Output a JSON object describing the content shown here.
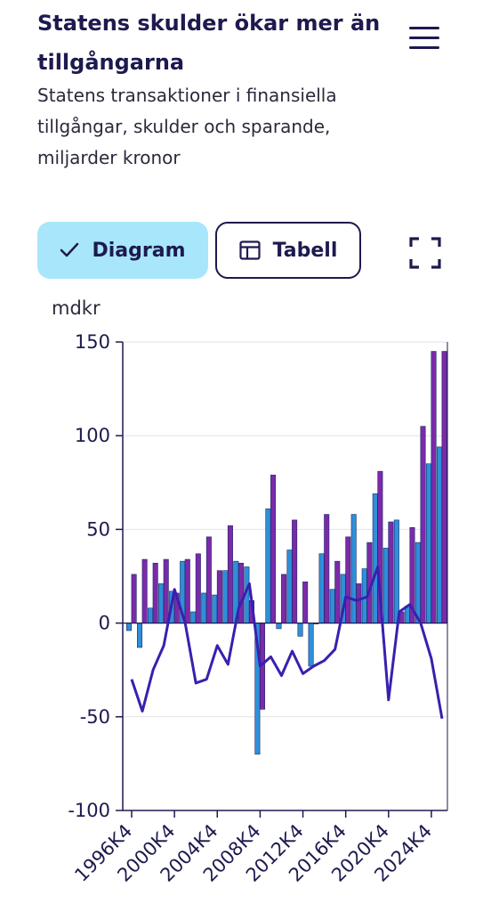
{
  "header": {
    "title": "Statens skulder ökar mer än tillgångarna",
    "subtitle": "Statens transaktioner i finansiella tillgångar, skulder och sparande, miljarder kronor"
  },
  "toolbar": {
    "diagram_label": "Diagram",
    "tabell_label": "Tabell"
  },
  "icons": [
    "menu-icon",
    "check-icon",
    "table-icon",
    "fullscreen-icon"
  ],
  "chart_data": {
    "type": "bar",
    "ylabel": "mdkr",
    "ylim": [
      -100,
      150
    ],
    "yticks": [
      150,
      100,
      50,
      0,
      -50,
      -100
    ],
    "xtick_labels": [
      "1996K4",
      "2000K4",
      "2004K4",
      "2008K4",
      "2012K4",
      "2016K4",
      "2020K4",
      "2024K4"
    ],
    "categories": [
      "1996K4",
      "1997K4",
      "1998K4",
      "1999K4",
      "2000K4",
      "2001K4",
      "2002K4",
      "2003K4",
      "2004K4",
      "2005K4",
      "2006K4",
      "2007K4",
      "2008K4",
      "2009K4",
      "2010K4",
      "2011K4",
      "2012K4",
      "2013K4",
      "2014K4",
      "2015K4",
      "2016K4",
      "2017K4",
      "2018K4",
      "2019K4",
      "2020K4",
      "2021K4",
      "2022K4",
      "2023K4",
      "2024K4",
      "2025K4"
    ],
    "series": [
      {
        "type": "bar",
        "color": "#2f8fd8",
        "values": [
          -4,
          -13,
          8,
          21,
          17,
          33,
          6,
          16,
          15,
          28,
          33,
          30,
          -70,
          61,
          -3,
          39,
          -7,
          -23,
          37,
          18,
          26,
          58,
          29,
          69,
          40,
          55,
          9,
          43,
          85,
          94
        ]
      },
      {
        "type": "bar",
        "color": "#7b2aa8",
        "values": [
          26,
          34,
          32,
          34,
          16,
          34,
          37,
          46,
          28,
          52,
          32,
          12,
          -46,
          79,
          26,
          55,
          22,
          0,
          58,
          33,
          46,
          21,
          43,
          81,
          54,
          6,
          51,
          105,
          145,
          145
        ]
      },
      {
        "type": "line",
        "color": "#3a1fb0",
        "values": [
          -30,
          -47,
          -25,
          -12,
          18,
          0,
          -32,
          -30,
          -12,
          -22,
          8,
          21,
          -23,
          -18,
          -28,
          -15,
          -27,
          -23,
          -20,
          -14,
          14,
          12,
          14,
          30,
          -41,
          6,
          10,
          0,
          -19,
          -51
        ]
      }
    ],
    "grid": true,
    "legend": "none"
  }
}
